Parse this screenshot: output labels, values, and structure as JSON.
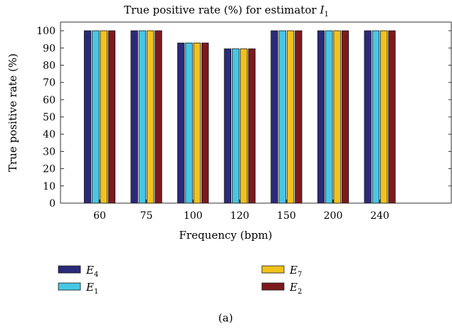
{
  "chart_data": {
    "type": "bar",
    "title": "True positive rate (%) for estimator",
    "title_symbol": "I",
    "title_subscript": "1",
    "xlabel": "Frequency (bpm)",
    "ylabel": "True positive rate (%)",
    "caption": "(a)",
    "categories": [
      "60",
      "75",
      "100",
      "120",
      "150",
      "200",
      "240"
    ],
    "ylim": [
      0,
      105
    ],
    "yticks": [
      "0",
      "10",
      "20",
      "30",
      "40",
      "50",
      "60",
      "70",
      "80",
      "90",
      "100"
    ],
    "grid": false,
    "legend_position": "bottom",
    "series": [
      {
        "name": "E4",
        "symbol": "E",
        "subscript": "4",
        "color": "#2b2a78",
        "values": [
          100,
          100,
          92.9,
          89.5,
          100,
          100,
          100
        ]
      },
      {
        "name": "E1",
        "symbol": "E",
        "subscript": "1",
        "color": "#45c8e6",
        "values": [
          100,
          100,
          92.9,
          89.5,
          100,
          100,
          100
        ]
      },
      {
        "name": "E7",
        "symbol": "E",
        "subscript": "7",
        "color": "#f2c21b",
        "values": [
          100,
          100,
          92.9,
          89.5,
          100,
          100,
          100
        ]
      },
      {
        "name": "E2",
        "symbol": "E",
        "subscript": "2",
        "color": "#7c1a1e",
        "values": [
          100,
          100,
          92.9,
          89.5,
          100,
          100,
          100
        ]
      }
    ]
  }
}
